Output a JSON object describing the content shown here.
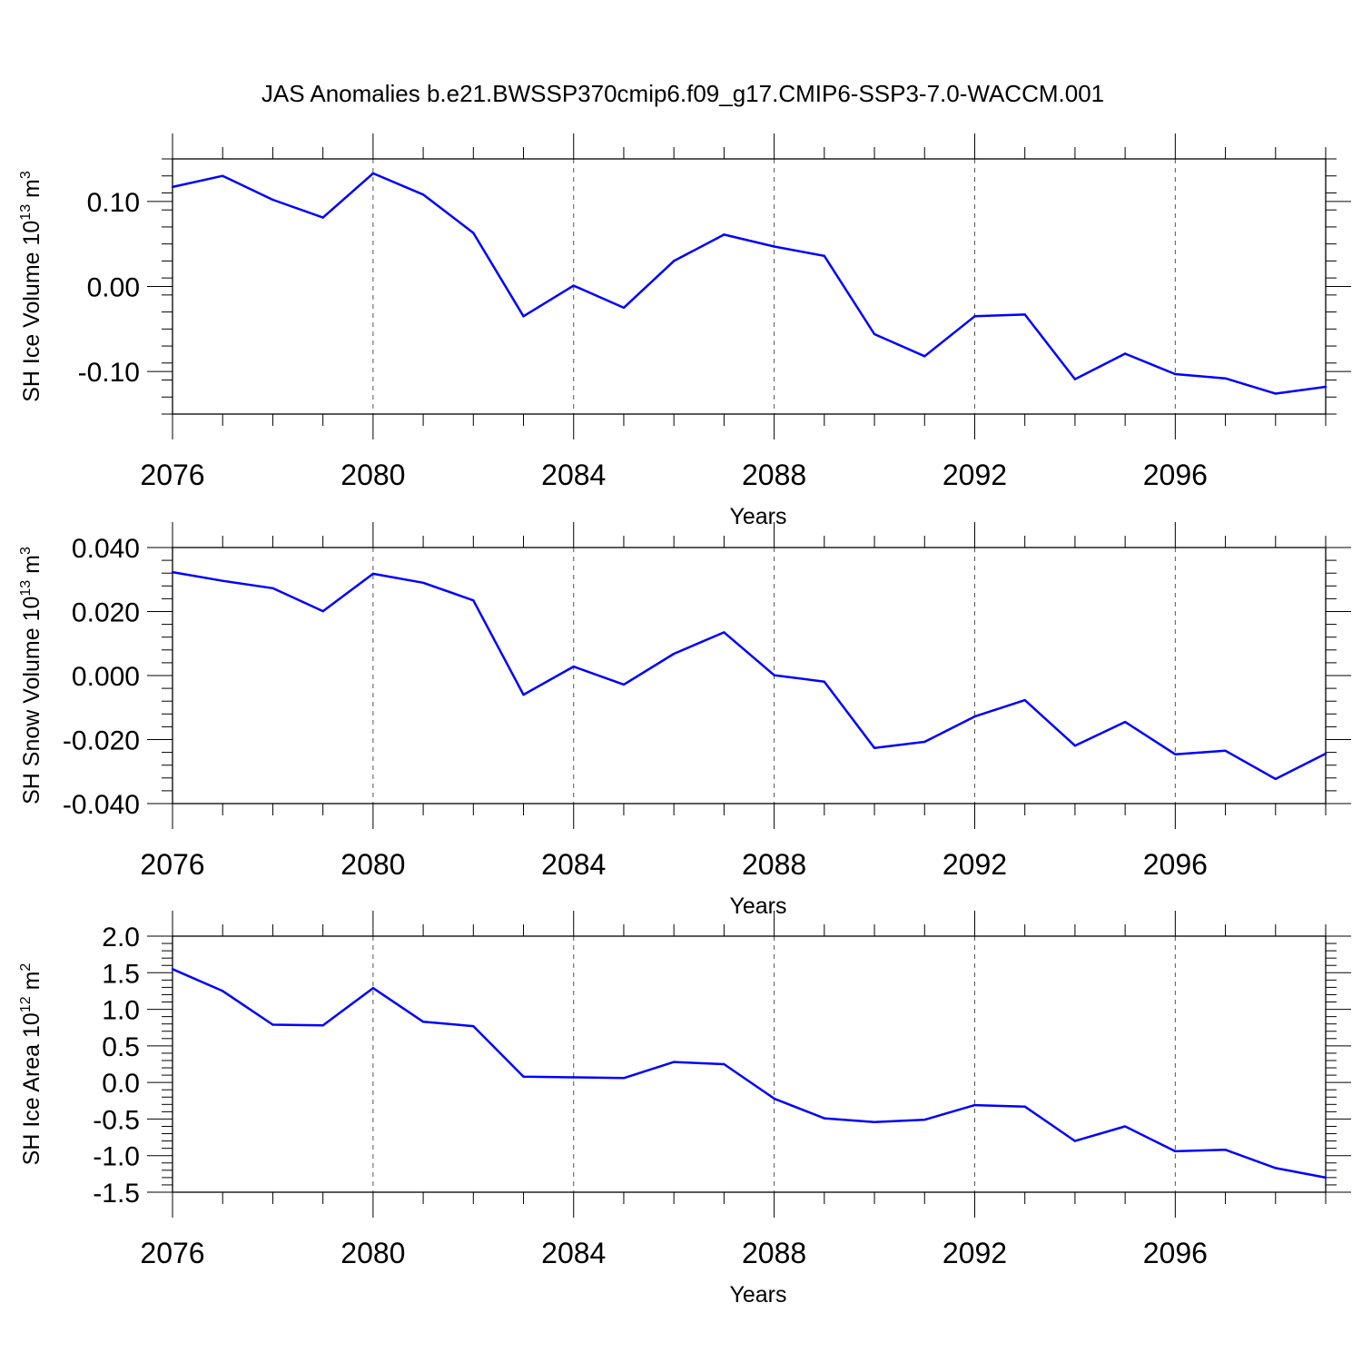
{
  "figure": {
    "title": "JAS Anomalies b.e21.BWSSP370cmip6.f09_g17.CMIP6-SSP3-7.0-WACCM.001",
    "line_color": "#0000ff"
  },
  "chart_data": [
    {
      "type": "line",
      "id": "ice-volume",
      "title": "",
      "xlabel": "Years",
      "ylabel_main": "SH Ice Volume 10",
      "ylabel_sup": "13",
      "ylabel_unit": "m",
      "ylabel_unit_sup": "3",
      "xlim": [
        2076,
        2099
      ],
      "ylim": [
        -0.15,
        0.15
      ],
      "xticks": [
        2076,
        2080,
        2084,
        2088,
        2092,
        2096
      ],
      "xtick_labels": [
        "2076",
        "2080",
        "2084",
        "2088",
        "2092",
        "2096"
      ],
      "yticks": [
        -0.1,
        0.0,
        0.1
      ],
      "ytick_labels": [
        "-0.10",
        "0.00",
        "0.10"
      ],
      "y_minor_step": 0.02,
      "x_minor_step": 1,
      "grid_x": true,
      "x": [
        2076,
        2077,
        2078,
        2079,
        2080,
        2081,
        2082,
        2083,
        2084,
        2085,
        2086,
        2087,
        2088,
        2089,
        2090,
        2091,
        2092,
        2093,
        2094,
        2095,
        2096,
        2097,
        2098,
        2099
      ],
      "series": [
        {
          "name": "SH Ice Volume",
          "values": [
            0.117,
            0.13,
            0.102,
            0.081,
            0.133,
            0.108,
            0.063,
            -0.035,
            0.001,
            -0.025,
            0.03,
            0.061,
            0.047,
            0.036,
            -0.056,
            -0.082,
            -0.035,
            -0.033,
            -0.109,
            -0.079,
            -0.103,
            -0.108,
            -0.126,
            -0.118
          ]
        }
      ]
    },
    {
      "type": "line",
      "id": "snow-volume",
      "title": "",
      "xlabel": "Years",
      "ylabel_main": "SH Snow Volume 10",
      "ylabel_sup": "13",
      "ylabel_unit": "m",
      "ylabel_unit_sup": "3",
      "xlim": [
        2076,
        2099
      ],
      "ylim": [
        -0.04,
        0.04
      ],
      "xticks": [
        2076,
        2080,
        2084,
        2088,
        2092,
        2096
      ],
      "xtick_labels": [
        "2076",
        "2080",
        "2084",
        "2088",
        "2092",
        "2096"
      ],
      "yticks": [
        -0.04,
        -0.02,
        0.0,
        0.02,
        0.04
      ],
      "ytick_labels": [
        "-0.040",
        "-0.020",
        "0.000",
        "0.020",
        "0.040"
      ],
      "y_minor_step": 0.004,
      "x_minor_step": 1,
      "grid_x": true,
      "x": [
        2076,
        2077,
        2078,
        2079,
        2080,
        2081,
        2082,
        2083,
        2084,
        2085,
        2086,
        2087,
        2088,
        2089,
        2090,
        2091,
        2092,
        2093,
        2094,
        2095,
        2096,
        2097,
        2098,
        2099
      ],
      "series": [
        {
          "name": "SH Snow Volume",
          "values": [
            0.0323,
            0.0296,
            0.0273,
            0.0201,
            0.0318,
            0.029,
            0.0235,
            -0.006,
            0.0028,
            -0.0028,
            0.0068,
            0.0135,
            0.0001,
            -0.0019,
            -0.0226,
            -0.0207,
            -0.0128,
            -0.0077,
            -0.0219,
            -0.0145,
            -0.0246,
            -0.0235,
            -0.0323,
            -0.0244
          ]
        }
      ]
    },
    {
      "type": "line",
      "id": "ice-area",
      "title": "",
      "xlabel": "Years",
      "ylabel_main": "SH Ice Area 10",
      "ylabel_sup": "12",
      "ylabel_unit": "m",
      "ylabel_unit_sup": "2",
      "xlim": [
        2076,
        2099
      ],
      "ylim": [
        -1.5,
        2.0
      ],
      "xticks": [
        2076,
        2080,
        2084,
        2088,
        2092,
        2096
      ],
      "xtick_labels": [
        "2076",
        "2080",
        "2084",
        "2088",
        "2092",
        "2096"
      ],
      "yticks": [
        -1.5,
        -1.0,
        -0.5,
        0.0,
        0.5,
        1.0,
        1.5,
        2.0
      ],
      "ytick_labels": [
        "-1.5",
        "-1.0",
        "-0.5",
        "0.0",
        "0.5",
        "1.0",
        "1.5",
        "2.0"
      ],
      "y_minor_step": 0.1,
      "x_minor_step": 1,
      "grid_x": true,
      "x": [
        2076,
        2077,
        2078,
        2079,
        2080,
        2081,
        2082,
        2083,
        2084,
        2085,
        2086,
        2087,
        2088,
        2089,
        2090,
        2091,
        2092,
        2093,
        2094,
        2095,
        2096,
        2097,
        2098,
        2099
      ],
      "series": [
        {
          "name": "SH Ice Area",
          "values": [
            1.55,
            1.25,
            0.79,
            0.78,
            1.29,
            0.83,
            0.77,
            0.08,
            0.07,
            0.06,
            0.28,
            0.25,
            -0.22,
            -0.49,
            -0.54,
            -0.51,
            -0.31,
            -0.33,
            -0.8,
            -0.6,
            -0.94,
            -0.92,
            -1.17,
            -1.3
          ]
        }
      ]
    }
  ]
}
